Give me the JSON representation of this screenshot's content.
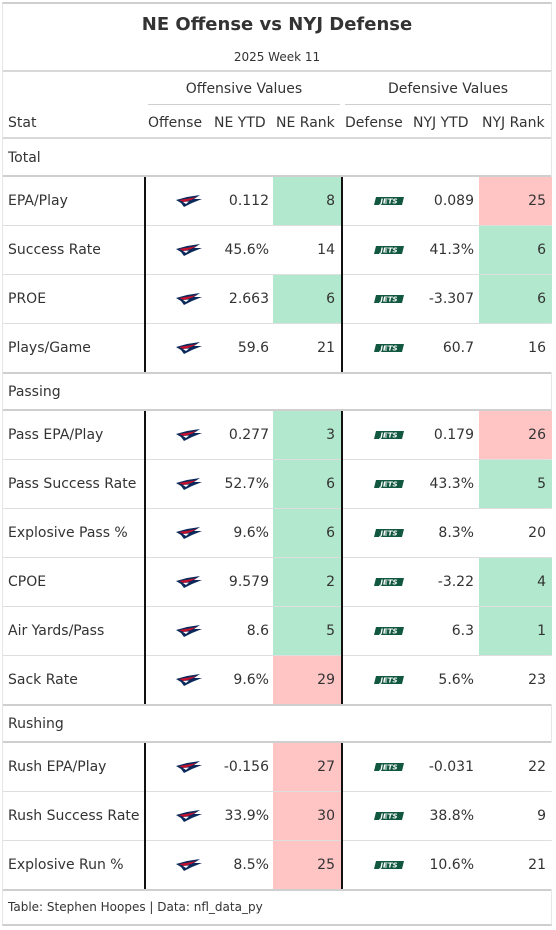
{
  "title": "NE Offense vs NYJ Defense",
  "subtitle": "2025 Week 11",
  "spanners": {
    "offensive": "Offensive Values",
    "defensive": "Defensive Values"
  },
  "columns": {
    "stat": "Stat",
    "offense": "Offense",
    "ne_ytd": "NE YTD",
    "ne_rank": "NE Rank",
    "defense": "Defense",
    "nyj_ytd": "NYJ YTD",
    "nyj_rank": "NYJ Rank"
  },
  "colors": {
    "good": "#b2e8cd",
    "bad": "#ffc4c4",
    "neutral": "#ffffff",
    "patriots_navy": "#0b2a5b",
    "patriots_red": "#c8102e",
    "jets_green": "#125740"
  },
  "icons": {
    "offense": "patriots-logo",
    "defense": "jets-logo"
  },
  "groups": [
    {
      "label": "Total",
      "rows": [
        {
          "stat": "EPA/Play",
          "ne_ytd": "0.112",
          "ne_rank": "8",
          "ne_rank_color": "good",
          "nyj_ytd": "0.089",
          "nyj_rank": "25",
          "nyj_rank_color": "bad"
        },
        {
          "stat": "Success Rate",
          "ne_ytd": "45.6%",
          "ne_rank": "14",
          "ne_rank_color": "neutral",
          "nyj_ytd": "41.3%",
          "nyj_rank": "6",
          "nyj_rank_color": "good"
        },
        {
          "stat": "PROE",
          "ne_ytd": "2.663",
          "ne_rank": "6",
          "ne_rank_color": "good",
          "nyj_ytd": "-3.307",
          "nyj_rank": "6",
          "nyj_rank_color": "good"
        },
        {
          "stat": "Plays/Game",
          "ne_ytd": "59.6",
          "ne_rank": "21",
          "ne_rank_color": "neutral",
          "nyj_ytd": "60.7",
          "nyj_rank": "16",
          "nyj_rank_color": "neutral"
        }
      ]
    },
    {
      "label": "Passing",
      "rows": [
        {
          "stat": "Pass EPA/Play",
          "ne_ytd": "0.277",
          "ne_rank": "3",
          "ne_rank_color": "good",
          "nyj_ytd": "0.179",
          "nyj_rank": "26",
          "nyj_rank_color": "bad"
        },
        {
          "stat": "Pass Success Rate",
          "ne_ytd": "52.7%",
          "ne_rank": "6",
          "ne_rank_color": "good",
          "nyj_ytd": "43.3%",
          "nyj_rank": "5",
          "nyj_rank_color": "good"
        },
        {
          "stat": "Explosive Pass %",
          "ne_ytd": "9.6%",
          "ne_rank": "6",
          "ne_rank_color": "good",
          "nyj_ytd": "8.3%",
          "nyj_rank": "20",
          "nyj_rank_color": "neutral"
        },
        {
          "stat": "CPOE",
          "ne_ytd": "9.579",
          "ne_rank": "2",
          "ne_rank_color": "good",
          "nyj_ytd": "-3.22",
          "nyj_rank": "4",
          "nyj_rank_color": "good"
        },
        {
          "stat": "Air Yards/Pass",
          "ne_ytd": "8.6",
          "ne_rank": "5",
          "ne_rank_color": "good",
          "nyj_ytd": "6.3",
          "nyj_rank": "1",
          "nyj_rank_color": "good"
        },
        {
          "stat": "Sack Rate",
          "ne_ytd": "9.6%",
          "ne_rank": "29",
          "ne_rank_color": "bad",
          "nyj_ytd": "5.6%",
          "nyj_rank": "23",
          "nyj_rank_color": "neutral"
        }
      ]
    },
    {
      "label": "Rushing",
      "rows": [
        {
          "stat": "Rush EPA/Play",
          "ne_ytd": "-0.156",
          "ne_rank": "27",
          "ne_rank_color": "bad",
          "nyj_ytd": "-0.031",
          "nyj_rank": "22",
          "nyj_rank_color": "neutral"
        },
        {
          "stat": "Rush Success Rate",
          "ne_ytd": "33.9%",
          "ne_rank": "30",
          "ne_rank_color": "bad",
          "nyj_ytd": "38.8%",
          "nyj_rank": "9",
          "nyj_rank_color": "neutral"
        },
        {
          "stat": "Explosive Run %",
          "ne_ytd": "8.5%",
          "ne_rank": "25",
          "ne_rank_color": "bad",
          "nyj_ytd": "10.6%",
          "nyj_rank": "21",
          "nyj_rank_color": "neutral"
        }
      ]
    }
  ],
  "footer": "Table: Stephen Hoopes | Data: nfl_data_py"
}
